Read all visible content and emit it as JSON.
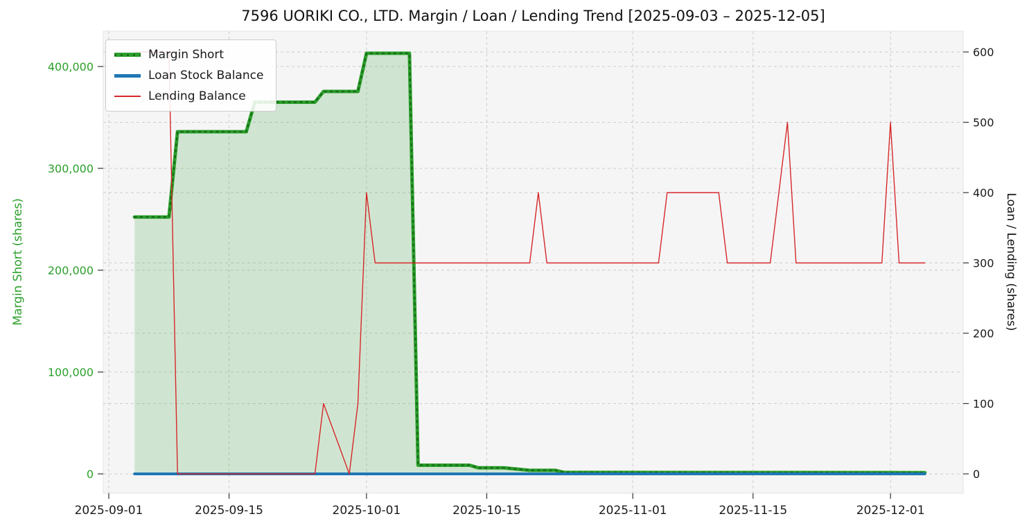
{
  "chart_data": {
    "type": "line",
    "title": "7596 UORIKI CO., LTD. Margin / Loan / Lending Trend [2025-09-03 – 2025-12-05]",
    "grid": true,
    "legend_position": "upper left",
    "legend": [
      "Margin Short",
      "Loan Stock Balance",
      "Lending Balance"
    ],
    "x_axis": {
      "type": "date",
      "start": "2025-09-03",
      "end": "2025-12-05",
      "ticks": [
        "2025-09-01",
        "2025-09-15",
        "2025-10-01",
        "2025-10-15",
        "2025-11-01",
        "2025-11-15",
        "2025-12-01"
      ]
    },
    "y_left": {
      "label": "Margin Short (shares)",
      "color": "#2ca02c",
      "ticks": [
        0,
        100000,
        200000,
        300000,
        400000
      ],
      "range": [
        -20650,
        433650
      ]
    },
    "y_right": {
      "label": "Loan / Lending (shares)",
      "color": "#111111",
      "ticks": [
        0,
        100,
        200,
        300,
        400,
        500,
        600
      ],
      "range": [
        -30,
        630
      ]
    },
    "series": [
      {
        "name": "Margin Short",
        "axis": "left",
        "color": "#2ca02c",
        "dotted_overlay": "#1b6f1b",
        "width": 5,
        "fill": true,
        "fill_opacity": 0.18,
        "points": [
          [
            "2025-09-04",
            252200
          ],
          [
            "2025-09-08",
            252200
          ],
          [
            "2025-09-09",
            336000
          ],
          [
            "2025-09-17",
            336000
          ],
          [
            "2025-09-18",
            365000
          ],
          [
            "2025-09-25",
            365000
          ],
          [
            "2025-09-26",
            375500
          ],
          [
            "2025-09-30",
            375500
          ],
          [
            "2025-10-01",
            413000
          ],
          [
            "2025-10-06",
            413000
          ],
          [
            "2025-10-07",
            8500
          ],
          [
            "2025-10-13",
            8500
          ],
          [
            "2025-10-14",
            6000
          ],
          [
            "2025-10-17",
            6000
          ],
          [
            "2025-10-20",
            3500
          ],
          [
            "2025-10-23",
            3500
          ],
          [
            "2025-10-24",
            1500
          ],
          [
            "2025-12-05",
            1200
          ]
        ]
      },
      {
        "name": "Loan Stock Balance",
        "axis": "right",
        "color": "#1f77b4",
        "width": 4,
        "points": [
          [
            "2025-09-04",
            0
          ],
          [
            "2025-12-05",
            0
          ]
        ]
      },
      {
        "name": "Lending Balance",
        "axis": "right",
        "color": "#d62728",
        "width": 1.4,
        "points": [
          [
            "2025-09-04",
            600
          ],
          [
            "2025-09-08",
            600
          ],
          [
            "2025-09-09",
            0
          ],
          [
            "2025-09-25",
            0
          ],
          [
            "2025-09-26",
            100
          ],
          [
            "2025-09-29",
            0
          ],
          [
            "2025-09-30",
            100
          ],
          [
            "2025-10-01",
            400
          ],
          [
            "2025-10-02",
            300
          ],
          [
            "2025-10-20",
            300
          ],
          [
            "2025-10-21",
            400
          ],
          [
            "2025-10-22",
            300
          ],
          [
            "2025-11-04",
            300
          ],
          [
            "2025-11-05",
            400
          ],
          [
            "2025-11-11",
            400
          ],
          [
            "2025-11-12",
            300
          ],
          [
            "2025-11-17",
            300
          ],
          [
            "2025-11-18",
            400
          ],
          [
            "2025-11-19",
            500
          ],
          [
            "2025-11-20",
            300
          ],
          [
            "2025-11-30",
            300
          ],
          [
            "2025-12-01",
            500
          ],
          [
            "2025-12-02",
            300
          ],
          [
            "2025-12-05",
            300
          ]
        ]
      }
    ]
  }
}
